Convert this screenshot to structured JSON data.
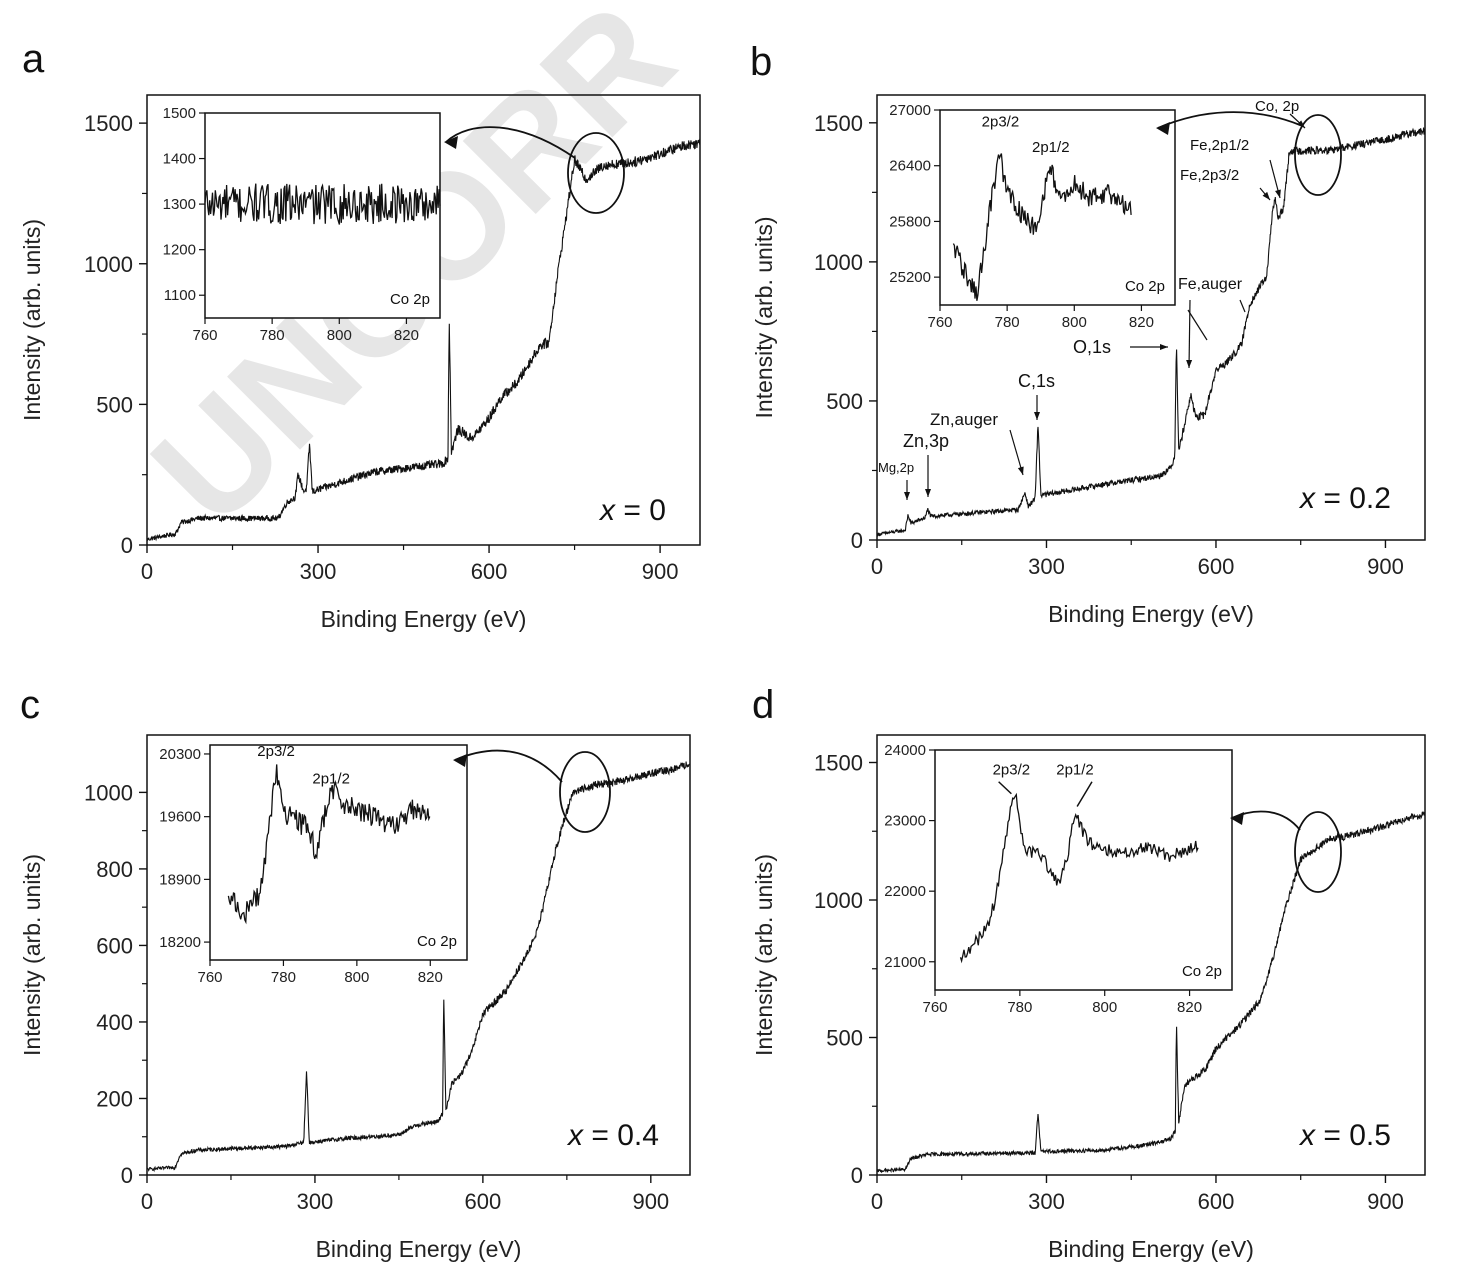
{
  "watermark": "UNCORR",
  "chart_data": [
    {
      "panel": "a",
      "type": "line",
      "xlabel": "Binding Energy (eV)",
      "ylabel": "Intensity (arb. units)",
      "xlim": [
        0,
        970
      ],
      "ylim": [
        0,
        1600
      ],
      "xticks": [
        0,
        300,
        600,
        900
      ],
      "yticks": [
        0,
        500,
        1000,
        1500
      ],
      "composition": "x = 0",
      "series": [
        {
          "knots": [
            [
              0,
              20
            ],
            [
              50,
              40
            ],
            [
              60,
              80
            ],
            [
              90,
              95
            ],
            [
              230,
              95
            ],
            [
              245,
              150
            ],
            [
              260,
              170
            ],
            [
              265,
              250
            ],
            [
              275,
              190
            ],
            [
              280,
              200
            ],
            [
              285,
              360
            ],
            [
              290,
              190
            ],
            [
              350,
              230
            ],
            [
              400,
              260
            ],
            [
              520,
              290
            ],
            [
              528,
              310
            ],
            [
              530,
              820
            ],
            [
              534,
              330
            ],
            [
              545,
              410
            ],
            [
              555,
              400
            ],
            [
              565,
              380
            ],
            [
              575,
              390
            ],
            [
              600,
              450
            ],
            [
              620,
              520
            ],
            [
              650,
              580
            ],
            [
              690,
              710
            ],
            [
              705,
              720
            ],
            [
              720,
              960
            ],
            [
              750,
              1370
            ],
            [
              770,
              1300
            ],
            [
              800,
              1350
            ],
            [
              850,
              1360
            ],
            [
              900,
              1390
            ],
            [
              940,
              1420
            ],
            [
              970,
              1430
            ]
          ],
          "noise": 18
        }
      ],
      "inset": {
        "xlim": [
          760,
          830
        ],
        "ylim": [
          1050,
          1500
        ],
        "xticks": [
          760,
          780,
          800,
          820
        ],
        "yticks": [
          1100,
          1200,
          1300,
          1400,
          1500
        ],
        "label": "Co 2p",
        "knots": [
          [
            760,
            1300
          ],
          [
            830,
            1300
          ]
        ],
        "noise": 45,
        "xrange": [
          760,
          830
        ]
      }
    },
    {
      "panel": "b",
      "type": "line",
      "xlabel": "Binding Energy (eV)",
      "ylabel": "Intensity (arb. units)",
      "xlim": [
        0,
        970
      ],
      "ylim": [
        0,
        1600
      ],
      "xticks": [
        0,
        300,
        600,
        900
      ],
      "yticks": [
        0,
        500,
        1000,
        1500
      ],
      "composition": "x = 0.2",
      "annotations": [
        "Mg,2p",
        "Zn,3p",
        "Zn,auger",
        "C,1s",
        "O,1s",
        "Fe,auger",
        "Fe,2p3/2",
        "Fe,2p1/2",
        "Co, 2p"
      ],
      "series": [
        {
          "knots": [
            [
              0,
              20
            ],
            [
              50,
              35
            ],
            [
              55,
              90
            ],
            [
              60,
              60
            ],
            [
              85,
              80
            ],
            [
              90,
              110
            ],
            [
              95,
              85
            ],
            [
              250,
              110
            ],
            [
              262,
              170
            ],
            [
              268,
              120
            ],
            [
              280,
              150
            ],
            [
              285,
              420
            ],
            [
              290,
              160
            ],
            [
              400,
              200
            ],
            [
              500,
              230
            ],
            [
              520,
              260
            ],
            [
              527,
              300
            ],
            [
              530,
              720
            ],
            [
              534,
              320
            ],
            [
              548,
              450
            ],
            [
              555,
              520
            ],
            [
              565,
              440
            ],
            [
              580,
              450
            ],
            [
              600,
              610
            ],
            [
              620,
              640
            ],
            [
              645,
              700
            ],
            [
              660,
              850
            ],
            [
              690,
              950
            ],
            [
              700,
              1180
            ],
            [
              705,
              1230
            ],
            [
              710,
              1150
            ],
            [
              720,
              1200
            ],
            [
              730,
              1400
            ],
            [
              750,
              1400
            ],
            [
              800,
              1400
            ],
            [
              850,
              1420
            ],
            [
              900,
              1440
            ],
            [
              940,
              1460
            ],
            [
              970,
              1470
            ]
          ],
          "noise": 14
        }
      ],
      "inset": {
        "xlim": [
          760,
          830
        ],
        "ylim": [
          24900,
          27000
        ],
        "xticks": [
          760,
          780,
          800,
          820
        ],
        "yticks": [
          25200,
          25800,
          26400,
          27000
        ],
        "label": "Co 2p",
        "peaks": [
          "2p3/2",
          "2p1/2"
        ],
        "knots": [
          [
            764,
            25550
          ],
          [
            768,
            25200
          ],
          [
            771,
            25000
          ],
          [
            774,
            25700
          ],
          [
            776,
            26200
          ],
          [
            778,
            26500
          ],
          [
            780,
            26100
          ],
          [
            786,
            25800
          ],
          [
            789,
            25700
          ],
          [
            791,
            26100
          ],
          [
            793,
            26400
          ],
          [
            796,
            26000
          ],
          [
            800,
            26200
          ],
          [
            805,
            26050
          ],
          [
            810,
            26100
          ],
          [
            817,
            25950
          ]
        ],
        "noise": 110,
        "xrange": [
          764,
          817
        ]
      }
    },
    {
      "panel": "c",
      "type": "line",
      "xlabel": "Binding Energy (eV)",
      "ylabel": "Intensity (arb. units)",
      "xlim": [
        0,
        970
      ],
      "ylim": [
        0,
        1150
      ],
      "xticks": [
        0,
        300,
        600,
        900
      ],
      "yticks": [
        0,
        200,
        400,
        600,
        800,
        1000
      ],
      "composition": "x = 0.4",
      "series": [
        {
          "knots": [
            [
              0,
              15
            ],
            [
              50,
              20
            ],
            [
              60,
              55
            ],
            [
              90,
              65
            ],
            [
              250,
              75
            ],
            [
              280,
              85
            ],
            [
              285,
              270
            ],
            [
              290,
              85
            ],
            [
              350,
              95
            ],
            [
              450,
              105
            ],
            [
              480,
              130
            ],
            [
              520,
              140
            ],
            [
              528,
              160
            ],
            [
              530,
              470
            ],
            [
              534,
              170
            ],
            [
              545,
              240
            ],
            [
              560,
              260
            ],
            [
              580,
              320
            ],
            [
              600,
              420
            ],
            [
              640,
              480
            ],
            [
              680,
              580
            ],
            [
              700,
              650
            ],
            [
              730,
              850
            ],
            [
              760,
              1000
            ],
            [
              800,
              1020
            ],
            [
              850,
              1030
            ],
            [
              900,
              1050
            ],
            [
              940,
              1060
            ],
            [
              970,
              1075
            ]
          ],
          "noise": 10
        }
      ],
      "inset": {
        "xlim": [
          760,
          830
        ],
        "ylim": [
          18000,
          20400
        ],
        "xticks": [
          760,
          780,
          800,
          820
        ],
        "yticks": [
          18200,
          18900,
          19600,
          20300
        ],
        "label": "Co 2p",
        "peaks": [
          "2p3/2",
          "2p1/2"
        ],
        "knots": [
          [
            765,
            18700
          ],
          [
            769,
            18500
          ],
          [
            773,
            18700
          ],
          [
            775,
            19100
          ],
          [
            777,
            19800
          ],
          [
            778,
            20100
          ],
          [
            781,
            19600
          ],
          [
            786,
            19500
          ],
          [
            789,
            19200
          ],
          [
            791,
            19600
          ],
          [
            793,
            19900
          ],
          [
            798,
            19700
          ],
          [
            805,
            19600
          ],
          [
            810,
            19500
          ],
          [
            816,
            19700
          ],
          [
            820,
            19550
          ]
        ],
        "noise": 130,
        "xrange": [
          765,
          820
        ]
      }
    },
    {
      "panel": "d",
      "type": "line",
      "xlabel": "Binding Energy (eV)",
      "ylabel": "Intensity (arb. units)",
      "xlim": [
        0,
        970
      ],
      "ylim": [
        0,
        1600
      ],
      "xticks": [
        0,
        300,
        600,
        900
      ],
      "yticks": [
        0,
        500,
        1000,
        1500
      ],
      "composition": "x = 0.5",
      "series": [
        {
          "knots": [
            [
              0,
              15
            ],
            [
              50,
              20
            ],
            [
              60,
              60
            ],
            [
              90,
              75
            ],
            [
              250,
              80
            ],
            [
              280,
              80
            ],
            [
              285,
              230
            ],
            [
              290,
              85
            ],
            [
              400,
              90
            ],
            [
              480,
              110
            ],
            [
              520,
              130
            ],
            [
              528,
              160
            ],
            [
              530,
              560
            ],
            [
              534,
              190
            ],
            [
              545,
              330
            ],
            [
              560,
              350
            ],
            [
              580,
              380
            ],
            [
              600,
              460
            ],
            [
              640,
              540
            ],
            [
              680,
              640
            ],
            [
              700,
              780
            ],
            [
              720,
              950
            ],
            [
              750,
              1150
            ],
            [
              800,
              1220
            ],
            [
              850,
              1240
            ],
            [
              900,
              1270
            ],
            [
              940,
              1300
            ],
            [
              970,
              1310
            ]
          ],
          "noise": 13
        }
      ],
      "inset": {
        "xlim": [
          760,
          830
        ],
        "ylim": [
          20600,
          24000
        ],
        "xticks": [
          760,
          780,
          800,
          820
        ],
        "yticks": [
          21000,
          22000,
          23000,
          24000
        ],
        "label": "Co 2p",
        "peaks": [
          "2p3/2",
          "2p1/2"
        ],
        "knots": [
          [
            766,
            21050
          ],
          [
            770,
            21300
          ],
          [
            773,
            21600
          ],
          [
            775,
            22100
          ],
          [
            777,
            22900
          ],
          [
            778,
            23300
          ],
          [
            779,
            23350
          ],
          [
            781,
            22600
          ],
          [
            785,
            22500
          ],
          [
            789,
            22100
          ],
          [
            791,
            22400
          ],
          [
            793,
            23100
          ],
          [
            796,
            22700
          ],
          [
            800,
            22600
          ],
          [
            805,
            22550
          ],
          [
            810,
            22650
          ],
          [
            815,
            22500
          ],
          [
            822,
            22650
          ]
        ],
        "noise": 90,
        "xrange": [
          766,
          822
        ]
      }
    }
  ]
}
